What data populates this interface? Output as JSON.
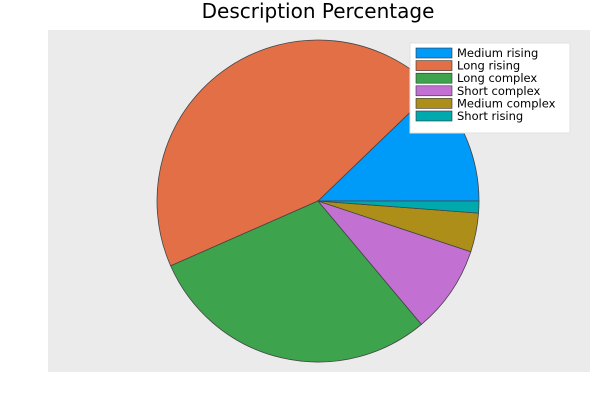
{
  "chart_data": {
    "type": "pie",
    "title": "Description Percentage",
    "legend_position": "top-right",
    "plot_background": "#ebebeb",
    "slice_border": "#444444",
    "slices": [
      {
        "label": "Medium rising",
        "value": 12.2,
        "color": "#009af9"
      },
      {
        "label": "Long rising",
        "value": 44.4,
        "color": "#e26f46"
      },
      {
        "label": "Long complex",
        "value": 29.5,
        "color": "#3da44d"
      },
      {
        "label": "Short complex",
        "value": 8.8,
        "color": "#c271d2"
      },
      {
        "label": "Medium complex",
        "value": 3.9,
        "color": "#ac8e18"
      },
      {
        "label": "Short rising",
        "value": 1.2,
        "color": "#00a9ad"
      }
    ]
  }
}
